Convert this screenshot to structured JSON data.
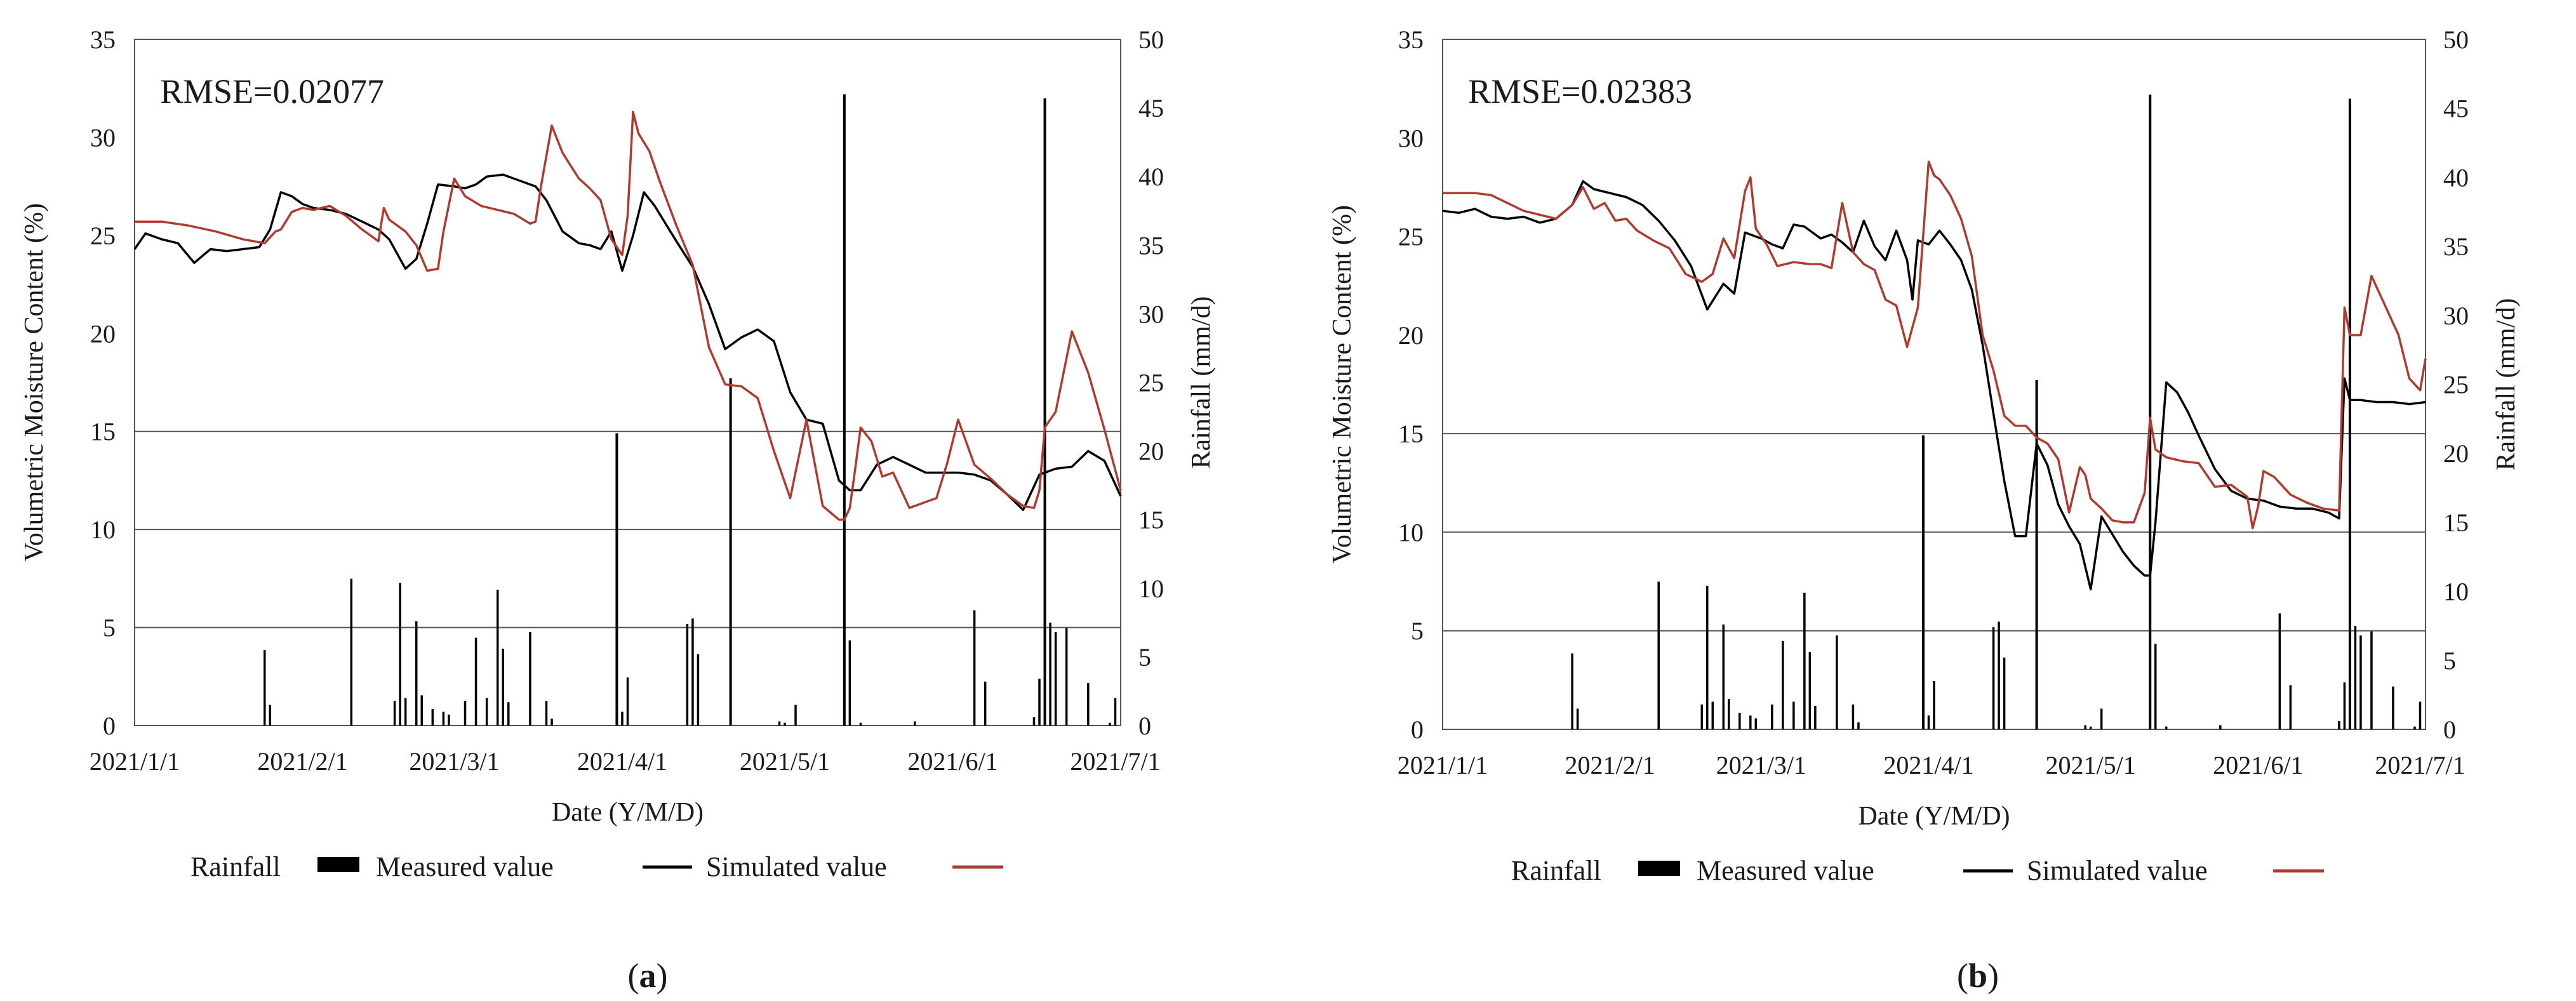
{
  "chart_data": [
    {
      "type": "line",
      "panel": "a",
      "annotation": "RMSE=0.02077",
      "xlabel": "Date (Y/M/D)",
      "ylabel": "Volumetric Moisture Content (%)",
      "y2label": "Rainfall (mm/d)",
      "ylim": [
        0,
        35
      ],
      "y2lim": [
        0,
        50
      ],
      "xlim": [
        0,
        182
      ],
      "x_unit": "days since 2021/1/1",
      "x_ticks": [
        0,
        31,
        59,
        90,
        120,
        151,
        181
      ],
      "x_tick_labels": [
        "2021/1/1",
        "2021/2/1",
        "2021/3/1",
        "2021/4/1",
        "2021/5/1",
        "2021/6/1",
        "2021/7/1"
      ],
      "y_ticks": [
        0,
        5,
        10,
        15,
        20,
        25,
        30,
        35
      ],
      "y2_ticks": [
        0,
        5,
        10,
        15,
        20,
        25,
        30,
        35,
        40,
        45,
        50
      ],
      "gridlines_y": [
        5,
        10,
        15
      ],
      "legend": {
        "placement": "bottom-center",
        "entries": [
          "Rainfall",
          "Measured value",
          "Simulated value"
        ]
      },
      "series": [
        {
          "name": "Rainfall",
          "type": "bar",
          "axis": "right",
          "color": "#000000",
          "x": [
            24,
            25,
            40,
            48,
            49,
            50,
            52,
            53,
            55,
            57,
            58,
            61,
            63,
            65,
            67,
            68,
            69,
            73,
            76,
            77,
            89,
            90,
            91,
            102,
            103,
            104,
            110,
            119,
            120,
            122,
            131,
            132,
            134,
            144,
            155,
            157,
            166,
            167,
            168,
            169,
            170,
            172,
            176,
            180,
            181
          ],
          "values": [
            5.5,
            1.5,
            10.7,
            1.8,
            10.4,
            2.0,
            7.6,
            2.2,
            1.2,
            1.0,
            0.8,
            1.8,
            6.4,
            2.0,
            9.9,
            5.6,
            1.7,
            6.8,
            1.8,
            0.5,
            21.3,
            1.0,
            3.5,
            7.4,
            7.8,
            5.2,
            25.3,
            0.3,
            0.2,
            1.5,
            46.0,
            6.2,
            0.2,
            0.3,
            8.4,
            3.2,
            0.6,
            3.4,
            45.7,
            7.5,
            6.8,
            7.1,
            3.1,
            0.2,
            2.0
          ]
        },
        {
          "name": "Measured value",
          "type": "line",
          "axis": "left",
          "color": "#000000",
          "x": [
            0,
            2,
            5,
            8,
            11,
            14,
            17,
            20,
            23,
            25,
            27,
            29,
            31,
            33,
            36,
            39,
            42,
            45,
            47,
            50,
            52,
            54,
            56,
            59,
            61,
            63,
            65,
            68,
            71,
            74,
            76,
            79,
            82,
            84,
            86,
            88,
            90,
            92,
            94,
            96,
            98,
            100,
            103,
            106,
            109,
            112,
            115,
            118,
            121,
            124,
            127,
            130,
            132,
            134,
            137,
            140,
            143,
            146,
            149,
            152,
            155,
            158,
            161,
            164,
            167,
            170,
            173,
            176,
            179,
            182
          ],
          "values": [
            24.3,
            25.1,
            24.8,
            24.6,
            23.6,
            24.3,
            24.2,
            24.3,
            24.4,
            25.3,
            27.2,
            27.0,
            26.6,
            26.4,
            26.3,
            26.1,
            25.7,
            25.3,
            24.8,
            23.3,
            23.8,
            25.6,
            27.6,
            27.5,
            27.4,
            27.6,
            28.0,
            28.1,
            27.8,
            27.5,
            26.8,
            25.2,
            24.6,
            24.5,
            24.3,
            25.2,
            23.2,
            25.0,
            27.2,
            26.5,
            25.6,
            24.7,
            23.4,
            21.5,
            19.2,
            19.8,
            20.2,
            19.6,
            17.0,
            15.6,
            15.4,
            12.5,
            12.0,
            12.0,
            13.3,
            13.7,
            13.3,
            12.9,
            12.9,
            12.9,
            12.8,
            12.5,
            11.8,
            11.0,
            12.8,
            13.1,
            13.2,
            14.0,
            13.5,
            11.7
          ]
        },
        {
          "name": "Simulated value",
          "type": "line",
          "axis": "left",
          "color": "#b03a2e",
          "x": [
            0,
            5,
            10,
            15,
            20,
            24,
            26,
            27,
            29,
            31,
            33,
            36,
            39,
            42,
            45,
            46,
            47,
            50,
            52,
            54,
            56,
            57,
            59,
            61,
            64,
            67,
            70,
            73,
            74,
            75,
            77,
            79,
            82,
            84,
            86,
            88,
            90,
            91,
            92,
            93,
            95,
            97,
            100,
            103,
            106,
            109,
            112,
            115,
            118,
            121,
            124,
            127,
            130,
            131,
            132,
            133,
            134,
            136,
            138,
            140,
            143,
            146,
            148,
            150,
            152,
            155,
            158,
            161,
            164,
            166,
            167,
            168,
            170,
            173,
            176,
            179,
            182
          ],
          "values": [
            25.7,
            25.7,
            25.5,
            25.2,
            24.8,
            24.6,
            25.2,
            25.3,
            26.2,
            26.4,
            26.3,
            26.5,
            26.0,
            25.3,
            24.7,
            26.4,
            25.8,
            25.2,
            24.5,
            23.2,
            23.3,
            25.2,
            27.9,
            27.0,
            26.5,
            26.3,
            26.1,
            25.6,
            25.7,
            27.5,
            30.6,
            29.2,
            27.9,
            27.4,
            26.8,
            24.8,
            24.0,
            26.0,
            31.3,
            30.2,
            29.3,
            27.7,
            25.5,
            23.5,
            19.3,
            17.4,
            17.3,
            16.7,
            14.0,
            11.6,
            15.6,
            11.2,
            10.5,
            10.5,
            11.1,
            13.1,
            15.2,
            14.5,
            12.7,
            12.9,
            11.1,
            11.4,
            11.6,
            13.4,
            15.6,
            13.3,
            12.6,
            11.8,
            11.2,
            11.1,
            12.0,
            15.2,
            16.0,
            20.1,
            18.0,
            15.1,
            12.0
          ]
        }
      ]
    },
    {
      "type": "line",
      "panel": "b",
      "annotation": "RMSE=0.02383",
      "xlabel": "Date (Y/M/D)",
      "ylabel": "Volumetric Moisture Content (%)",
      "y2label": "Rainfall (mm/d)",
      "ylim": [
        0,
        35
      ],
      "y2lim": [
        0,
        50
      ],
      "xlim": [
        0,
        182
      ],
      "x_unit": "days since 2021/1/1",
      "x_ticks": [
        0,
        31,
        59,
        90,
        120,
        151,
        181
      ],
      "x_tick_labels": [
        "2021/1/1",
        "2021/2/1",
        "2021/3/1",
        "2021/4/1",
        "2021/5/1",
        "2021/6/1",
        "2021/7/1"
      ],
      "y_ticks": [
        0,
        5,
        10,
        15,
        20,
        25,
        30,
        35
      ],
      "y2_ticks": [
        0,
        5,
        10,
        15,
        20,
        25,
        30,
        35,
        40,
        45,
        50
      ],
      "gridlines_y": [
        5,
        10,
        15
      ],
      "legend": {
        "placement": "bottom-center",
        "entries": [
          "Rainfall",
          "Measured value",
          "Simulated value"
        ]
      },
      "series": [
        {
          "name": "Rainfall",
          "type": "bar",
          "axis": "right",
          "color": "#000000",
          "x": [
            24,
            25,
            40,
            48,
            49,
            50,
            52,
            53,
            55,
            57,
            58,
            61,
            63,
            65,
            67,
            68,
            69,
            73,
            76,
            77,
            89,
            90,
            91,
            102,
            103,
            104,
            110,
            119,
            120,
            122,
            131,
            132,
            134,
            144,
            155,
            157,
            166,
            167,
            168,
            169,
            170,
            172,
            176,
            180,
            181
          ],
          "values": [
            5.5,
            1.5,
            10.7,
            1.8,
            10.4,
            2.0,
            7.6,
            2.2,
            1.2,
            1.0,
            0.8,
            1.8,
            6.4,
            2.0,
            9.9,
            5.6,
            1.7,
            6.8,
            1.8,
            0.5,
            21.3,
            1.0,
            3.5,
            7.4,
            7.8,
            5.2,
            25.3,
            0.3,
            0.2,
            1.5,
            46.0,
            6.2,
            0.2,
            0.3,
            8.4,
            3.2,
            0.6,
            3.4,
            45.7,
            7.5,
            6.8,
            7.1,
            3.1,
            0.2,
            2.0
          ]
        },
        {
          "name": "Measured value",
          "type": "line",
          "axis": "left",
          "color": "#000000",
          "x": [
            0,
            3,
            6,
            9,
            12,
            15,
            18,
            21,
            24,
            26,
            28,
            31,
            34,
            37,
            40,
            43,
            46,
            49,
            52,
            54,
            56,
            58,
            59,
            61,
            63,
            65,
            67,
            70,
            72,
            74,
            76,
            78,
            80,
            82,
            84,
            86,
            87,
            88,
            90,
            92,
            94,
            96,
            98,
            100,
            102,
            104,
            106,
            108,
            110,
            112,
            114,
            116,
            118,
            120,
            122,
            124,
            126,
            128,
            130,
            131,
            132,
            134,
            136,
            138,
            140,
            143,
            146,
            149,
            152,
            155,
            158,
            161,
            164,
            166,
            167,
            168,
            170,
            173,
            176,
            179,
            182
          ],
          "values": [
            26.3,
            26.2,
            26.4,
            26.0,
            25.9,
            26.0,
            25.7,
            25.9,
            26.6,
            27.8,
            27.4,
            27.2,
            27.0,
            26.6,
            25.8,
            24.8,
            23.5,
            21.3,
            22.6,
            22.1,
            25.2,
            25.0,
            24.9,
            24.6,
            24.4,
            25.6,
            25.5,
            24.9,
            25.1,
            24.7,
            24.2,
            25.8,
            24.5,
            23.8,
            25.3,
            23.8,
            21.8,
            24.8,
            24.6,
            25.3,
            24.6,
            23.8,
            22.3,
            19.5,
            16.0,
            12.6,
            9.8,
            9.8,
            14.5,
            13.4,
            11.4,
            10.3,
            9.4,
            7.1,
            10.8,
            9.9,
            9.0,
            8.3,
            7.8,
            7.8,
            10.5,
            17.6,
            17.1,
            16.1,
            14.9,
            13.2,
            12.1,
            11.7,
            11.6,
            11.3,
            11.2,
            11.2,
            11.0,
            10.7,
            17.8,
            16.7,
            16.7,
            16.6,
            16.6,
            16.5,
            16.6
          ]
        },
        {
          "name": "Simulated value",
          "type": "line",
          "axis": "left",
          "color": "#b03a2e",
          "x": [
            0,
            3,
            6,
            9,
            12,
            15,
            18,
            21,
            24,
            26,
            28,
            30,
            32,
            34,
            36,
            39,
            42,
            45,
            48,
            50,
            52,
            54,
            56,
            57,
            58,
            60,
            62,
            65,
            68,
            70,
            72,
            74,
            76,
            78,
            80,
            82,
            84,
            86,
            88,
            90,
            91,
            92,
            94,
            96,
            98,
            100,
            102,
            104,
            106,
            108,
            110,
            112,
            114,
            116,
            118,
            119,
            120,
            122,
            124,
            126,
            128,
            130,
            131,
            132,
            134,
            137,
            140,
            143,
            146,
            149,
            150,
            151,
            152,
            154,
            157,
            160,
            163,
            166,
            167,
            168,
            169,
            170,
            172,
            174,
            177,
            179,
            181,
            182
          ],
          "values": [
            27.2,
            27.2,
            27.2,
            27.1,
            26.7,
            26.3,
            26.1,
            25.9,
            26.6,
            27.5,
            26.4,
            26.7,
            25.8,
            25.9,
            25.3,
            24.8,
            24.4,
            23.1,
            22.7,
            23.1,
            24.9,
            23.9,
            27.3,
            28.0,
            25.4,
            24.6,
            23.5,
            23.7,
            23.6,
            23.6,
            23.4,
            26.7,
            24.2,
            23.6,
            23.3,
            21.8,
            21.5,
            19.4,
            21.4,
            28.8,
            28.1,
            27.9,
            27.1,
            25.9,
            24.0,
            20.0,
            18.2,
            15.9,
            15.4,
            15.4,
            14.8,
            14.5,
            13.7,
            11.0,
            13.3,
            12.9,
            11.7,
            11.2,
            10.6,
            10.5,
            10.5,
            12.0,
            15.8,
            14.2,
            13.8,
            13.6,
            13.5,
            12.3,
            12.4,
            11.8,
            10.2,
            11.3,
            13.1,
            12.8,
            11.9,
            11.5,
            11.2,
            11.1,
            21.4,
            20.0,
            20.0,
            20.0,
            23.0,
            21.8,
            20.0,
            17.8,
            17.2,
            18.8
          ]
        }
      ]
    }
  ],
  "panel_labels": [
    {
      "open": "(",
      "letter": "a",
      "close": ")"
    },
    {
      "open": "(",
      "letter": "b",
      "close": ")"
    }
  ]
}
